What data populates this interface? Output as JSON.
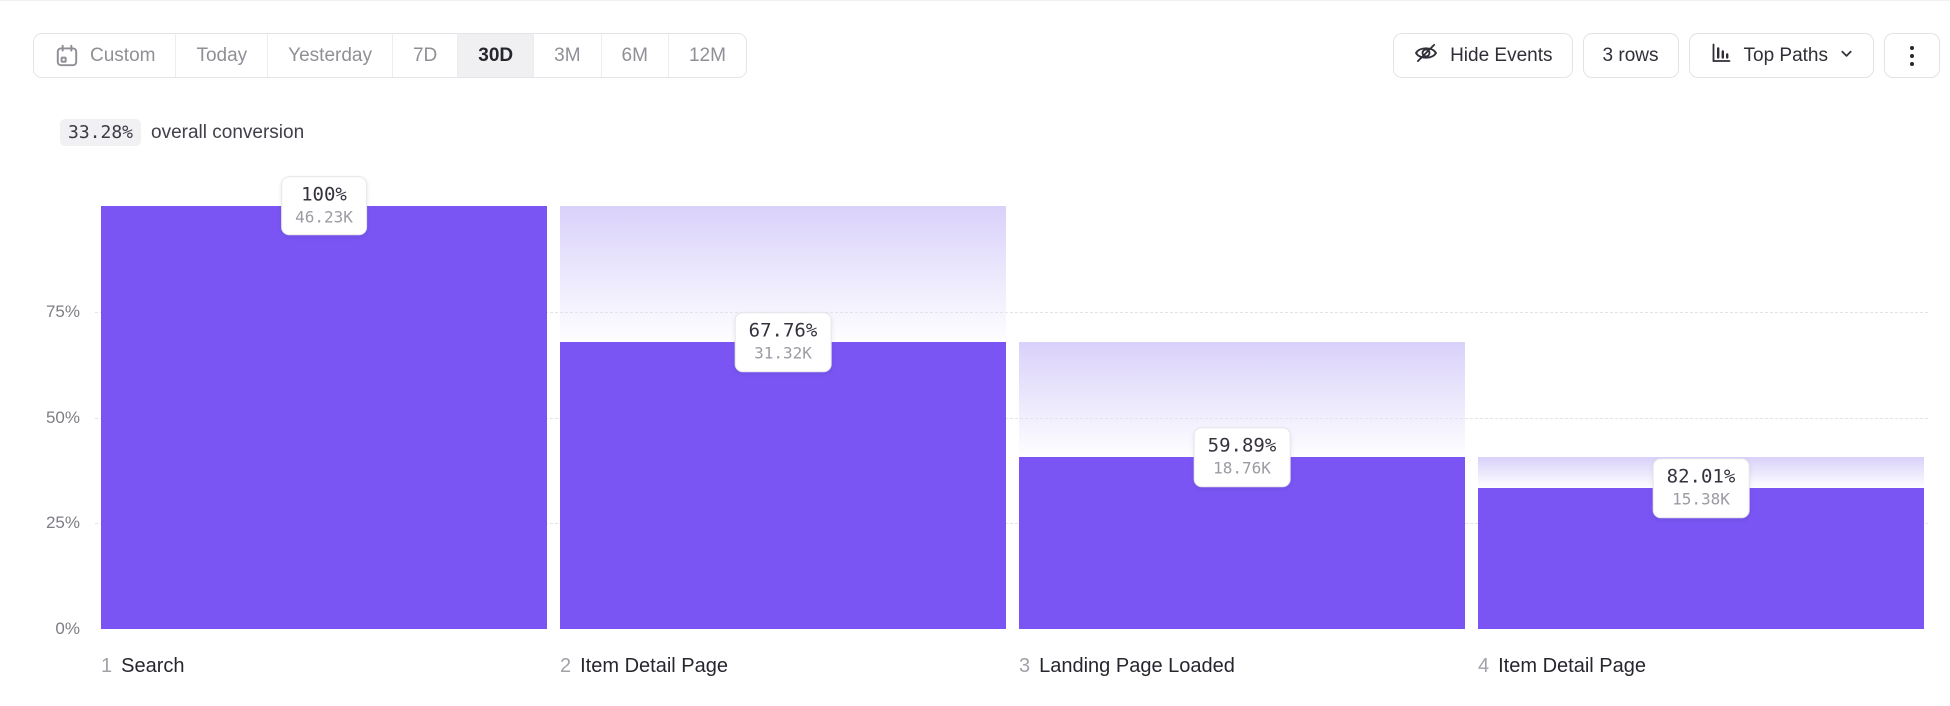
{
  "toolbar": {
    "date_ranges": {
      "items": [
        {
          "label": "Custom",
          "selected": false,
          "icon": "calendar-icon"
        },
        {
          "label": "Today",
          "selected": false
        },
        {
          "label": "Yesterday",
          "selected": false
        },
        {
          "label": "7D",
          "selected": false
        },
        {
          "label": "30D",
          "selected": true
        },
        {
          "label": "3M",
          "selected": false
        },
        {
          "label": "6M",
          "selected": false
        },
        {
          "label": "12M",
          "selected": false
        }
      ],
      "selected_value": "30D"
    },
    "hide_events_label": "Hide Events",
    "rows_label": "3 rows",
    "top_paths_label": "Top Paths",
    "icons": [
      "calendar-icon",
      "eye-off-icon",
      "chart-bars-icon",
      "chevron-down-icon",
      "kebab-menu-icon"
    ]
  },
  "summary": {
    "conversion_value": "33.28%",
    "conversion_text": "overall conversion"
  },
  "chart_data": {
    "type": "bar",
    "subtype": "funnel",
    "title": "",
    "xlabel": "",
    "ylabel": "",
    "ylim": [
      0,
      100
    ],
    "grid": "horizontal-dashed",
    "legend": "none",
    "yticks": [
      {
        "label": "75%",
        "pct": 75,
        "line": true
      },
      {
        "label": "50%",
        "pct": 50,
        "line": true
      },
      {
        "label": "25%",
        "pct": 25,
        "line": true
      },
      {
        "label": "0%",
        "pct": 0,
        "line": false
      }
    ],
    "steps": [
      {
        "index": "1",
        "name": "Search",
        "conversion_label": "100%",
        "count_label": "46.23K",
        "overall_pct": 100,
        "prev_overall_pct": 100
      },
      {
        "index": "2",
        "name": "Item Detail Page",
        "conversion_label": "67.76%",
        "count_label": "31.32K",
        "overall_pct": 67.75,
        "prev_overall_pct": 100
      },
      {
        "index": "3",
        "name": "Landing Page Loaded",
        "conversion_label": "59.89%",
        "count_label": "18.76K",
        "overall_pct": 40.58,
        "prev_overall_pct": 67.75
      },
      {
        "index": "4",
        "name": "Item Detail Page",
        "conversion_label": "82.01%",
        "count_label": "15.38K",
        "overall_pct": 33.27,
        "prev_overall_pct": 40.58
      }
    ]
  },
  "colors": {
    "bar": "#7a55f3",
    "dropoff_gradient_top": "#d9d1fa",
    "dropoff_gradient_bottom": "#fefeff",
    "selected_range_bg": "#f0f0f2",
    "chip_bg": "#f1f1f3"
  }
}
